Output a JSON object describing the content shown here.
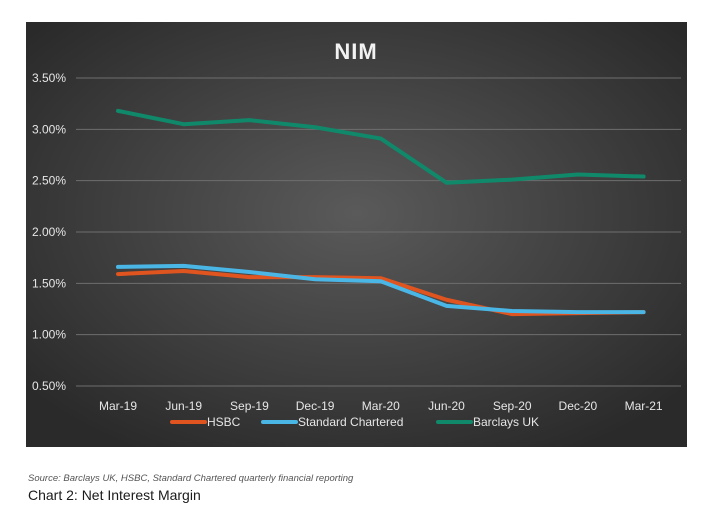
{
  "chart_data": {
    "type": "line",
    "title": "NIM",
    "categories": [
      "Mar-19",
      "Jun-19",
      "Sep-19",
      "Dec-19",
      "Mar-20",
      "Jun-20",
      "Sep-20",
      "Dec-20",
      "Mar-21"
    ],
    "y_ticks": [
      "0.50%",
      "1.00%",
      "1.50%",
      "2.00%",
      "2.50%",
      "3.00%",
      "3.50%"
    ],
    "ylim": [
      0.5,
      3.5
    ],
    "yunit": "%",
    "grid": true,
    "legend_position": "bottom",
    "series": [
      {
        "name": "HSBC",
        "color": "#e0541f",
        "values": [
          1.59,
          1.62,
          1.56,
          1.56,
          1.55,
          1.34,
          1.2,
          1.21,
          1.22
        ]
      },
      {
        "name": "Standard Chartered",
        "color": "#4ab6e6",
        "values": [
          1.66,
          1.67,
          1.61,
          1.54,
          1.52,
          1.28,
          1.23,
          1.22,
          1.22
        ]
      },
      {
        "name": "Barclays UK",
        "color": "#10896b",
        "values": [
          3.18,
          3.05,
          3.09,
          3.02,
          2.91,
          2.48,
          2.51,
          2.56,
          2.54
        ]
      }
    ]
  },
  "source_note": "Source: Barclays UK, HSBC, Standard Chartered quarterly financial reporting",
  "caption": "Chart 2: Net Interest Margin"
}
